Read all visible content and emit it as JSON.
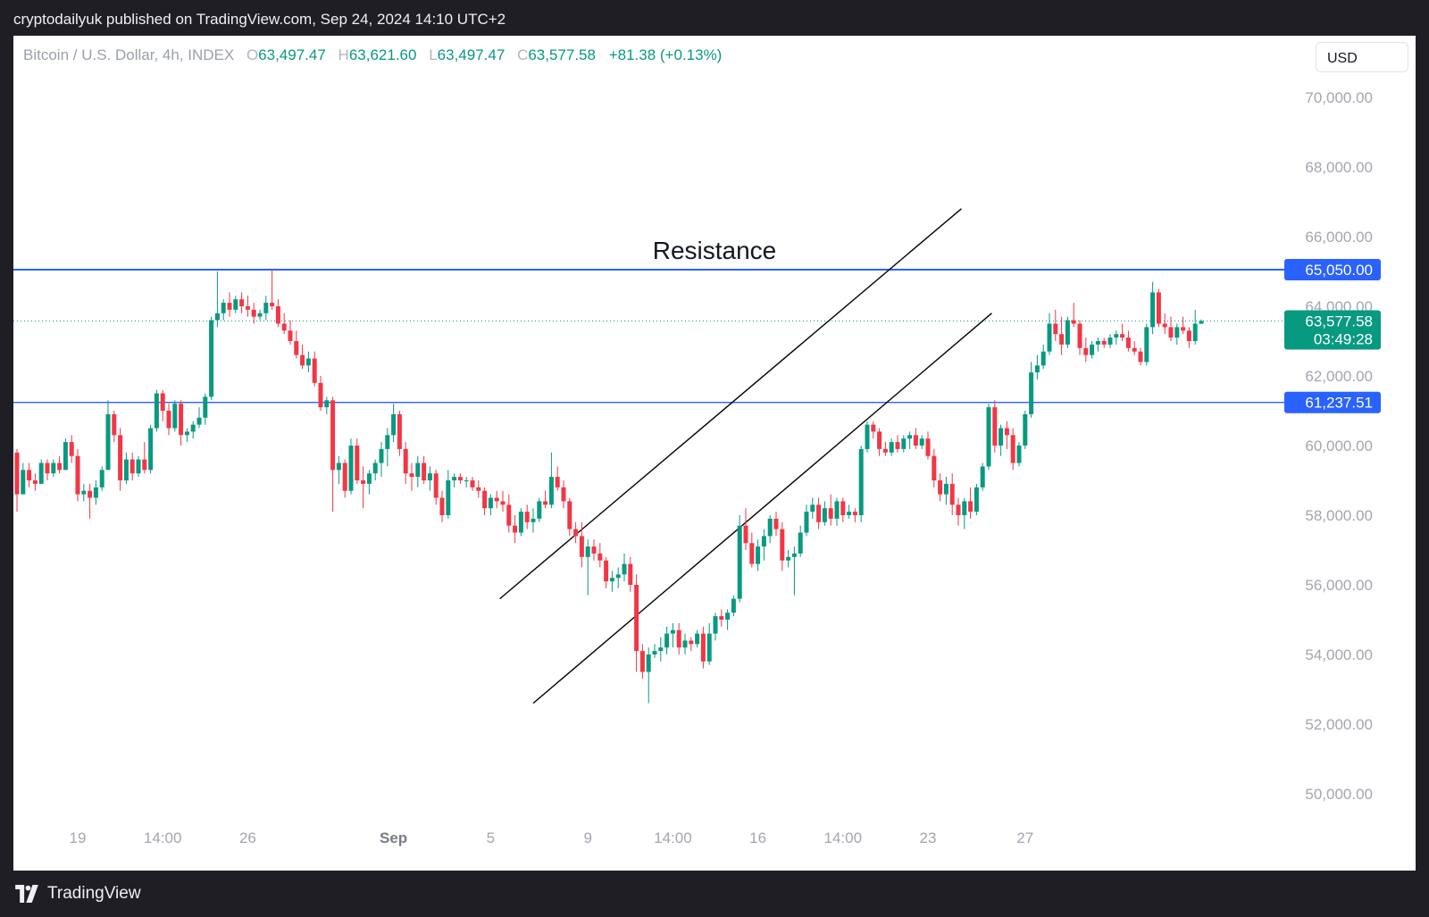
{
  "publisher": "cryptodailyuk published on TradingView.com, Sep 24, 2024 14:10 UTC+2",
  "footer": {
    "brand": "TradingView"
  },
  "header": {
    "symbol": "Bitcoin / U.S. Dollar, 4h, INDEX",
    "open_label": "O",
    "open": "63,497.47",
    "high_label": "H",
    "high": "63,621.60",
    "low_label": "L",
    "low": "63,497.47",
    "close_label": "C",
    "close": "63,577.58",
    "change": "+81.38 (+0.13%)"
  },
  "currency": "USD",
  "colors": {
    "up": "#089981",
    "down": "#f23645",
    "level": "#2962ff",
    "background": "#ffffff",
    "frame": "#1e1e24"
  },
  "chart_data": {
    "type": "candlestick",
    "title": "",
    "ylim": [
      49000,
      71000
    ],
    "y_ticks": [
      "70,000.00",
      "68,000.00",
      "66,000.00",
      "64,000.00",
      "62,000.00",
      "60,000.00",
      "58,000.00",
      "56,000.00",
      "54,000.00",
      "52,000.00",
      "50,000.00"
    ],
    "y_tick_values": [
      70000,
      68000,
      66000,
      64000,
      62000,
      60000,
      58000,
      56000,
      54000,
      52000,
      50000
    ],
    "x_ticks": [
      {
        "label": "19",
        "index": 10,
        "bold": false
      },
      {
        "label": "14:00",
        "index": 24,
        "bold": false
      },
      {
        "label": "26",
        "index": 38,
        "bold": false
      },
      {
        "label": "Sep",
        "index": 62,
        "bold": true
      },
      {
        "label": "5",
        "index": 78,
        "bold": false
      },
      {
        "label": "9",
        "index": 94,
        "bold": false
      },
      {
        "label": "14:00",
        "index": 108,
        "bold": false
      },
      {
        "label": "16",
        "index": 122,
        "bold": false
      },
      {
        "label": "14:00",
        "index": 136,
        "bold": false
      },
      {
        "label": "23",
        "index": 150,
        "bold": false
      },
      {
        "label": "27",
        "index": 166,
        "bold": false
      }
    ],
    "levels": [
      {
        "name": "Resistance",
        "value": 65050,
        "label": "65,050.00",
        "style": "solid"
      },
      {
        "name": "",
        "value": 61237.51,
        "label": "61,237.51",
        "style": "solid"
      }
    ],
    "annotation": "Resistance",
    "current_price": {
      "value": 63577.58,
      "label": "63,577.58",
      "countdown": "03:49:28"
    },
    "channel": {
      "upper": [
        {
          "i": 79.5,
          "p": 55600
        },
        {
          "i": 155.5,
          "p": 66800
        }
      ],
      "lower": [
        {
          "i": 85,
          "p": 52600
        },
        {
          "i": 160.5,
          "p": 63800
        }
      ]
    },
    "candles": [
      [
        59800,
        59900,
        58100,
        58600
      ],
      [
        58600,
        59500,
        58600,
        59300
      ],
      [
        59300,
        59500,
        58800,
        59000
      ],
      [
        59000,
        59200,
        58700,
        58900
      ],
      [
        58900,
        59600,
        58900,
        59500
      ],
      [
        59500,
        59600,
        59000,
        59200
      ],
      [
        59200,
        59600,
        59100,
        59500
      ],
      [
        59500,
        59700,
        59200,
        59300
      ],
      [
        59300,
        60200,
        59300,
        60100
      ],
      [
        60100,
        60300,
        59500,
        59700
      ],
      [
        59700,
        59900,
        58400,
        58600
      ],
      [
        58600,
        58900,
        58400,
        58700
      ],
      [
        58700,
        58900,
        57900,
        58500
      ],
      [
        58500,
        59000,
        58300,
        58800
      ],
      [
        58800,
        59400,
        58700,
        59300
      ],
      [
        59300,
        61300,
        59300,
        60900
      ],
      [
        60900,
        61000,
        60100,
        60300
      ],
      [
        60300,
        60500,
        58700,
        59000
      ],
      [
        59000,
        59800,
        58900,
        59600
      ],
      [
        59600,
        59800,
        59000,
        59200
      ],
      [
        59200,
        59700,
        59100,
        59600
      ],
      [
        59600,
        60100,
        59200,
        59300
      ],
      [
        59300,
        60600,
        59200,
        60500
      ],
      [
        60500,
        61600,
        60400,
        61500
      ],
      [
        61500,
        61600,
        60700,
        61000
      ],
      [
        61000,
        61200,
        60300,
        60500
      ],
      [
        60500,
        61300,
        60400,
        61200
      ],
      [
        61200,
        61300,
        60000,
        60300
      ],
      [
        60300,
        60500,
        60100,
        60400
      ],
      [
        60400,
        60700,
        60200,
        60600
      ],
      [
        60600,
        61100,
        60500,
        60800
      ],
      [
        60800,
        61500,
        60600,
        61400
      ],
      [
        61400,
        63700,
        61300,
        63600
      ],
      [
        63600,
        65000,
        63400,
        63800
      ],
      [
        63800,
        64200,
        63600,
        64100
      ],
      [
        64100,
        64400,
        63700,
        63900
      ],
      [
        63900,
        64300,
        63800,
        64200
      ],
      [
        64200,
        64400,
        63800,
        64000
      ],
      [
        64000,
        64300,
        63700,
        63900
      ],
      [
        63900,
        64100,
        63500,
        63700
      ],
      [
        63700,
        63900,
        63600,
        63800
      ],
      [
        63800,
        64300,
        63600,
        64100
      ],
      [
        64100,
        65050,
        63900,
        64000
      ],
      [
        64000,
        64200,
        63400,
        63500
      ],
      [
        63500,
        63800,
        63200,
        63300
      ],
      [
        63300,
        63600,
        62900,
        63000
      ],
      [
        63000,
        63300,
        62500,
        62600
      ],
      [
        62600,
        62900,
        62200,
        62300
      ],
      [
        62300,
        62700,
        62100,
        62500
      ],
      [
        62500,
        62700,
        61700,
        61800
      ],
      [
        61800,
        62000,
        61000,
        61100
      ],
      [
        61100,
        61400,
        60900,
        61300
      ],
      [
        61300,
        61400,
        58100,
        59300
      ],
      [
        59300,
        59700,
        58900,
        59500
      ],
      [
        59500,
        59600,
        58500,
        58700
      ],
      [
        58700,
        60200,
        58600,
        60000
      ],
      [
        60000,
        60200,
        58900,
        59000
      ],
      [
        59000,
        59400,
        58200,
        58900
      ],
      [
        58900,
        59300,
        58600,
        59200
      ],
      [
        59200,
        59600,
        59000,
        59500
      ],
      [
        59500,
        60100,
        59100,
        59900
      ],
      [
        59900,
        60500,
        59400,
        60300
      ],
      [
        60300,
        61200,
        60100,
        60900
      ],
      [
        60900,
        61000,
        59700,
        59900
      ],
      [
        59900,
        60100,
        58900,
        59200
      ],
      [
        59200,
        59500,
        58700,
        59100
      ],
      [
        59100,
        59700,
        58800,
        59500
      ],
      [
        59500,
        59700,
        58900,
        59000
      ],
      [
        59000,
        59400,
        58700,
        59200
      ],
      [
        59200,
        59300,
        58300,
        58500
      ],
      [
        58500,
        58700,
        57800,
        58000
      ],
      [
        58000,
        59300,
        57900,
        59000
      ],
      [
        59000,
        59200,
        58800,
        59100
      ],
      [
        59100,
        59200,
        58900,
        59000
      ],
      [
        59000,
        59100,
        58800,
        59000
      ],
      [
        59000,
        59100,
        58700,
        58800
      ],
      [
        58800,
        59000,
        58500,
        58700
      ],
      [
        58700,
        58800,
        58000,
        58200
      ],
      [
        58200,
        58600,
        58000,
        58500
      ],
      [
        58500,
        58700,
        58200,
        58400
      ],
      [
        58400,
        58700,
        58100,
        58300
      ],
      [
        58300,
        58600,
        57500,
        57700
      ],
      [
        57700,
        58000,
        57200,
        57500
      ],
      [
        57500,
        58200,
        57400,
        58100
      ],
      [
        58100,
        58300,
        57600,
        57800
      ],
      [
        57800,
        58200,
        57500,
        57900
      ],
      [
        57900,
        58500,
        57800,
        58400
      ],
      [
        58400,
        58700,
        58200,
        58300
      ],
      [
        58300,
        59800,
        58200,
        59100
      ],
      [
        59100,
        59400,
        58700,
        58800
      ],
      [
        58800,
        59000,
        58200,
        58400
      ],
      [
        58400,
        58500,
        57400,
        57600
      ],
      [
        57600,
        57800,
        57200,
        57400
      ],
      [
        57400,
        57800,
        56500,
        56800
      ],
      [
        56800,
        57300,
        55700,
        57100
      ],
      [
        57100,
        57300,
        56700,
        56900
      ],
      [
        56900,
        57200,
        56500,
        56700
      ],
      [
        56700,
        56800,
        55900,
        56100
      ],
      [
        56100,
        56400,
        55800,
        56200
      ],
      [
        56200,
        56500,
        55900,
        56300
      ],
      [
        56300,
        56900,
        56100,
        56600
      ],
      [
        56600,
        56800,
        55800,
        56000
      ],
      [
        56000,
        56300,
        53500,
        54100
      ],
      [
        54100,
        54300,
        53300,
        53500
      ],
      [
        53500,
        54200,
        52600,
        54000
      ],
      [
        54000,
        54300,
        53900,
        54100
      ],
      [
        54100,
        54500,
        53800,
        54200
      ],
      [
        54200,
        54800,
        54000,
        54600
      ],
      [
        54600,
        54900,
        54200,
        54700
      ],
      [
        54700,
        54900,
        54000,
        54200
      ],
      [
        54200,
        54600,
        54000,
        54400
      ],
      [
        54400,
        54500,
        54100,
        54300
      ],
      [
        54300,
        54700,
        54200,
        54600
      ],
      [
        54600,
        54800,
        53600,
        53800
      ],
      [
        53800,
        54900,
        53700,
        54600
      ],
      [
        54600,
        55200,
        54400,
        55100
      ],
      [
        55100,
        55300,
        54800,
        55000
      ],
      [
        55000,
        55300,
        54700,
        55200
      ],
      [
        55200,
        55700,
        55100,
        55600
      ],
      [
        55600,
        58000,
        55500,
        57700
      ],
      [
        57700,
        58200,
        57000,
        57200
      ],
      [
        57200,
        57500,
        56500,
        56600
      ],
      [
        56600,
        57300,
        56400,
        57100
      ],
      [
        57100,
        57600,
        56700,
        57400
      ],
      [
        57400,
        58000,
        57200,
        57900
      ],
      [
        57900,
        58100,
        57400,
        57600
      ],
      [
        57600,
        57800,
        56400,
        56700
      ],
      [
        56700,
        57000,
        56500,
        56800
      ],
      [
        56800,
        57100,
        55700,
        56900
      ],
      [
        56900,
        57700,
        56800,
        57500
      ],
      [
        57500,
        58300,
        57400,
        58100
      ],
      [
        58100,
        58500,
        57900,
        58300
      ],
      [
        58300,
        58500,
        57600,
        57800
      ],
      [
        57800,
        58400,
        57700,
        58200
      ],
      [
        58200,
        58600,
        57700,
        57900
      ],
      [
        57900,
        58500,
        57700,
        58400
      ],
      [
        58400,
        58500,
        57800,
        58000
      ],
      [
        58000,
        58300,
        57900,
        58100
      ],
      [
        58100,
        58200,
        57800,
        58000
      ],
      [
        58000,
        60000,
        57800,
        59900
      ],
      [
        59900,
        60700,
        59800,
        60600
      ],
      [
        60600,
        60700,
        60200,
        60400
      ],
      [
        60400,
        60500,
        59700,
        59900
      ],
      [
        59900,
        60100,
        59700,
        59800
      ],
      [
        59800,
        60200,
        59700,
        60100
      ],
      [
        60100,
        60300,
        59800,
        59900
      ],
      [
        59900,
        60300,
        59800,
        60200
      ],
      [
        60200,
        60400,
        59900,
        60300
      ],
      [
        60300,
        60500,
        59900,
        60000
      ],
      [
        60000,
        60300,
        59900,
        60200
      ],
      [
        60200,
        60400,
        59600,
        59700
      ],
      [
        59700,
        59900,
        58800,
        59000
      ],
      [
        59000,
        59200,
        58400,
        58600
      ],
      [
        58600,
        59100,
        58300,
        58900
      ],
      [
        58900,
        59200,
        58000,
        58300
      ],
      [
        58300,
        58500,
        57700,
        58000
      ],
      [
        58000,
        58500,
        57600,
        58400
      ],
      [
        58400,
        58800,
        57900,
        58100
      ],
      [
        58100,
        58900,
        58000,
        58800
      ],
      [
        58800,
        59500,
        58700,
        59400
      ],
      [
        59400,
        61200,
        59300,
        61100
      ],
      [
        61100,
        61300,
        59800,
        60000
      ],
      [
        60000,
        60600,
        59700,
        60500
      ],
      [
        60500,
        60700,
        59900,
        60300
      ],
      [
        60300,
        60500,
        59300,
        59500
      ],
      [
        59500,
        60100,
        59400,
        60000
      ],
      [
        60000,
        61000,
        59900,
        60900
      ],
      [
        60900,
        62400,
        60800,
        62100
      ],
      [
        62100,
        62600,
        61900,
        62300
      ],
      [
        62300,
        62900,
        62200,
        62700
      ],
      [
        62700,
        63800,
        62600,
        63500
      ],
      [
        63500,
        63900,
        63000,
        63200
      ],
      [
        63200,
        63700,
        62600,
        62900
      ],
      [
        62900,
        63700,
        62800,
        63600
      ],
      [
        63600,
        64100,
        63400,
        63500
      ],
      [
        63500,
        63600,
        62600,
        62800
      ],
      [
        62800,
        63100,
        62400,
        62600
      ],
      [
        62600,
        63000,
        62500,
        62900
      ],
      [
        62900,
        63100,
        62700,
        63000
      ],
      [
        63000,
        63100,
        62800,
        62900
      ],
      [
        62900,
        63200,
        62800,
        63100
      ],
      [
        63100,
        63300,
        62900,
        63200
      ],
      [
        63200,
        63500,
        63000,
        63100
      ],
      [
        63100,
        63300,
        62700,
        62800
      ],
      [
        62800,
        63000,
        62600,
        62700
      ],
      [
        62700,
        62800,
        62300,
        62400
      ],
      [
        62400,
        63500,
        62300,
        63400
      ],
      [
        63400,
        64700,
        63200,
        64400
      ],
      [
        64400,
        64500,
        63400,
        63500
      ],
      [
        63500,
        63800,
        63200,
        63400
      ],
      [
        63400,
        63700,
        63000,
        63100
      ],
      [
        63100,
        63500,
        62900,
        63400
      ],
      [
        63400,
        63700,
        63200,
        63300
      ],
      [
        63300,
        63400,
        62800,
        63000
      ],
      [
        63000,
        63900,
        62900,
        63500
      ],
      [
        63497.47,
        63621.6,
        63497.47,
        63577.58
      ]
    ]
  }
}
